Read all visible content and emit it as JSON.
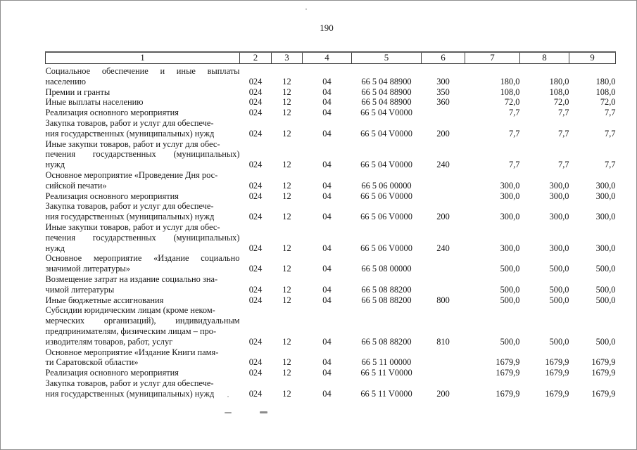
{
  "page": {
    "number": "190"
  },
  "table": {
    "header": [
      "1",
      "2",
      "3",
      "4",
      "5",
      "6",
      "7",
      "8",
      "9"
    ],
    "rows": [
      {
        "lines": [
          {
            "t": "Социальное обеспечение и иные выплаты",
            "j": true
          },
          {
            "t": "населению"
          }
        ],
        "c": [
          "024",
          "12",
          "04",
          "66 5 04 88900",
          "300",
          "180,0",
          "180,0",
          "180,0"
        ]
      },
      {
        "lines": [
          {
            "t": "Премии и гранты"
          }
        ],
        "c": [
          "024",
          "12",
          "04",
          "66 5 04 88900",
          "350",
          "108,0",
          "108,0",
          "108,0"
        ]
      },
      {
        "lines": [
          {
            "t": "Иные выплаты населению"
          }
        ],
        "c": [
          "024",
          "12",
          "04",
          "66 5 04 88900",
          "360",
          "72,0",
          "72,0",
          "72,0"
        ]
      },
      {
        "lines": [
          {
            "t": "Реализация основного мероприятия"
          }
        ],
        "c": [
          "024",
          "12",
          "04",
          "66 5 04 V0000",
          "",
          "7,7",
          "7,7",
          "7,7"
        ]
      },
      {
        "lines": [
          {
            "t": "Закупка товаров, работ и услуг для обеспече-"
          },
          {
            "t": "ния государственных (муниципальных) нужд"
          }
        ],
        "c": [
          "024",
          "12",
          "04",
          "66 5 04 V0000",
          "200",
          "7,7",
          "7,7",
          "7,7"
        ]
      },
      {
        "lines": [
          {
            "t": "Иные закупки товаров, работ и услуг для обес-"
          },
          {
            "t": "печения государственных (муниципальных)",
            "j": true
          },
          {
            "t": "нужд"
          }
        ],
        "c": [
          "024",
          "12",
          "04",
          "66 5 04 V0000",
          "240",
          "7,7",
          "7,7",
          "7,7"
        ]
      },
      {
        "lines": [
          {
            "t": "Основное мероприятие «Проведение Дня рос-"
          },
          {
            "t": "сийской печати»"
          }
        ],
        "c": [
          "024",
          "12",
          "04",
          "66 5 06 00000",
          "",
          "300,0",
          "300,0",
          "300,0"
        ]
      },
      {
        "lines": [
          {
            "t": "Реализация основного мероприятия"
          }
        ],
        "c": [
          "024",
          "12",
          "04",
          "66 5 06 V0000",
          "",
          "300,0",
          "300,0",
          "300,0"
        ]
      },
      {
        "lines": [
          {
            "t": "Закупка товаров, работ и услуг для обеспече-"
          },
          {
            "t": "ния государственных (муниципальных) нужд"
          }
        ],
        "c": [
          "024",
          "12",
          "04",
          "66 5 06 V0000",
          "200",
          "300,0",
          "300,0",
          "300,0"
        ]
      },
      {
        "lines": [
          {
            "t": "Иные закупки товаров, работ и услуг для обес-"
          },
          {
            "t": "печения государственных (муниципальных)",
            "j": true
          },
          {
            "t": "нужд"
          }
        ],
        "c": [
          "024",
          "12",
          "04",
          "66 5 06 V0000",
          "240",
          "300,0",
          "300,0",
          "300,0"
        ]
      },
      {
        "lines": [
          {
            "t": "Основное мероприятие «Издание социально",
            "j": true
          },
          {
            "t": "значимой литературы»"
          }
        ],
        "c": [
          "024",
          "12",
          "04",
          "66 5 08 00000",
          "",
          "500,0",
          "500,0",
          "500,0"
        ]
      },
      {
        "lines": [
          {
            "t": "Возмещение затрат на издание социально зна-"
          },
          {
            "t": "чимой литературы"
          }
        ],
        "c": [
          "024",
          "12",
          "04",
          "66 5 08 88200",
          "",
          "500,0",
          "500,0",
          "500,0"
        ]
      },
      {
        "lines": [
          {
            "t": "Иные бюджетные ассигнования"
          }
        ],
        "c": [
          "024",
          "12",
          "04",
          "66 5 08 88200",
          "800",
          "500,0",
          "500,0",
          "500,0"
        ]
      },
      {
        "lines": [
          {
            "t": "Субсидии юридическим лицам (кроме неком-"
          },
          {
            "t": "мерческих организаций), индивидуальным",
            "j": true
          },
          {
            "t": "предпринимателям, физическим лицам – про-"
          },
          {
            "t": "изводителям товаров, работ, услуг"
          }
        ],
        "c": [
          "024",
          "12",
          "04",
          "66 5 08 88200",
          "810",
          "500,0",
          "500,0",
          "500,0"
        ]
      },
      {
        "lines": [
          {
            "t": "Основное мероприятие «Издание Книги памя-"
          },
          {
            "t": "ти Саратовской области»"
          }
        ],
        "c": [
          "024",
          "12",
          "04",
          "66 5 11 00000",
          "",
          "1679,9",
          "1679,9",
          "1679,9"
        ]
      },
      {
        "lines": [
          {
            "t": "Реализация основного мероприятия"
          }
        ],
        "c": [
          "024",
          "12",
          "04",
          "66 5 11 V0000",
          "",
          "1679,9",
          "1679,9",
          "1679,9"
        ]
      },
      {
        "lines": [
          {
            "t": "Закупка товаров, работ и услуг для обеспече-"
          },
          {
            "t": "ния государственных (муниципальных) нужд"
          }
        ],
        "c": [
          "024",
          "12",
          "04",
          "66 5 11 V0000",
          "200",
          "1679,9",
          "1679,9",
          "1679,9"
        ]
      }
    ]
  }
}
